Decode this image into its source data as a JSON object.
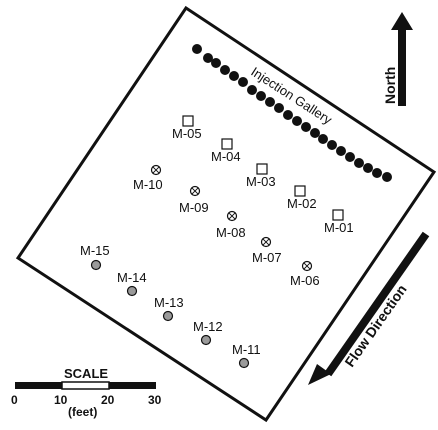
{
  "gallery": {
    "label": "Injection Gallery"
  },
  "north": {
    "label": "North"
  },
  "flow": {
    "label": "Flow Direction"
  },
  "scale": {
    "title": "SCALE",
    "ticks": [
      "0",
      "10",
      "20",
      "30"
    ],
    "unit": "(feet)"
  },
  "wells": {
    "square": [
      "M-05",
      "M-04",
      "M-03",
      "M-02",
      "M-01"
    ],
    "crossed": [
      "M-10",
      "M-09",
      "M-08",
      "M-07",
      "M-06"
    ],
    "filled": [
      "M-15",
      "M-14",
      "M-13",
      "M-12",
      "M-11"
    ]
  },
  "colors": {
    "ink": "#111111",
    "filled_marker": "#9a9a9a"
  }
}
